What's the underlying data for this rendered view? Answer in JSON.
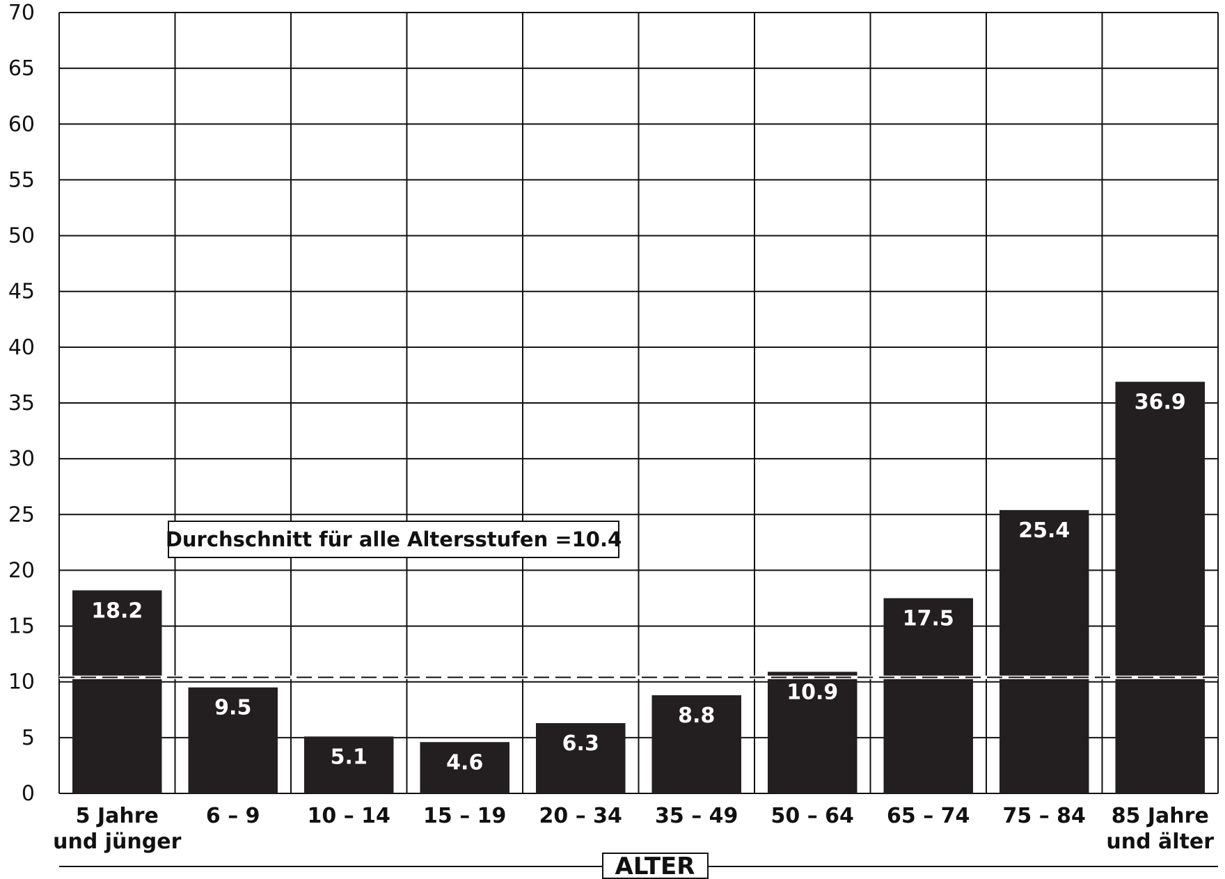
{
  "chart_data": {
    "type": "bar",
    "categories": [
      [
        "5 Jahre",
        "und jünger"
      ],
      [
        "6 – 9"
      ],
      [
        "10 – 14"
      ],
      [
        "15 – 19"
      ],
      [
        "20 – 34"
      ],
      [
        "35 – 49"
      ],
      [
        "50 – 64"
      ],
      [
        "65 – 74"
      ],
      [
        "75 – 84"
      ],
      [
        "85 Jahre",
        "und älter"
      ]
    ],
    "values": [
      18.2,
      9.5,
      5.1,
      4.6,
      6.3,
      8.8,
      10.9,
      17.5,
      25.4,
      36.9
    ],
    "value_labels": [
      "18.2",
      "9.5",
      "5.1",
      "4.6",
      "6.3",
      "8.8",
      "10.9",
      "17.5",
      "25.4",
      "36.9"
    ],
    "xlabel": "ALTER",
    "ylabel": "",
    "ylim": [
      0,
      70
    ],
    "yticks": [
      0,
      5,
      10,
      15,
      20,
      25,
      30,
      35,
      40,
      45,
      50,
      55,
      60,
      65,
      70
    ],
    "grid": true,
    "bar_color": "#231f20",
    "average": {
      "value": 10.4,
      "label": "Durchschnitt für alle Altersstufen =10.4"
    }
  }
}
